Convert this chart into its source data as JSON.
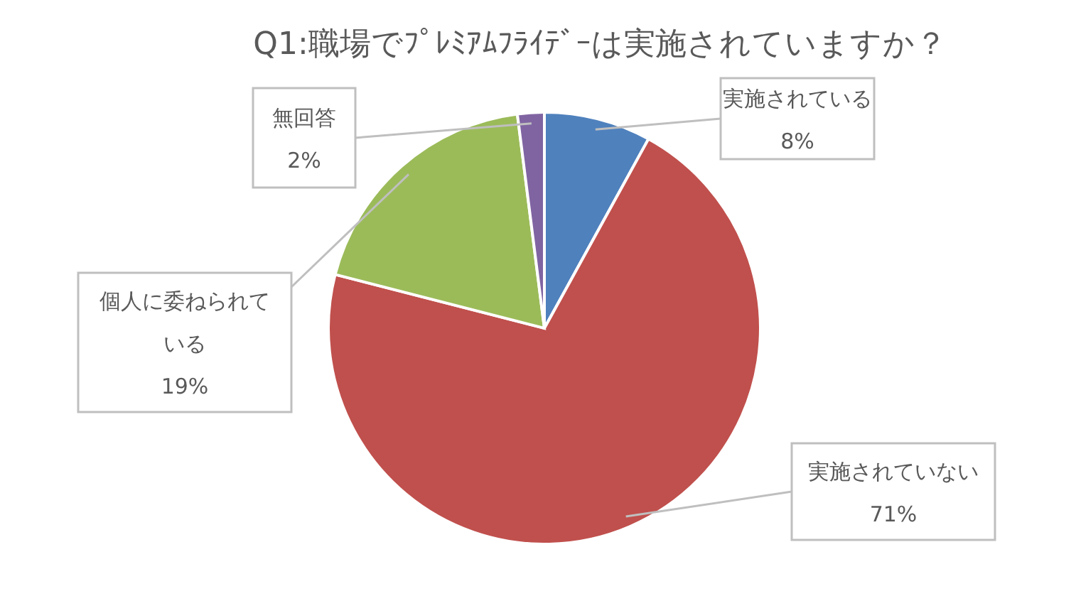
{
  "chart_data": {
    "type": "pie",
    "title": "Q1:職場でﾌﾟﾚﾐｱﾑﾌﾗｲﾃﾞｰは実施されていますか？",
    "categories": [
      "実施されている",
      "実施されていない",
      "個人に委ねられている",
      "無回答"
    ],
    "values": [
      8,
      71,
      19,
      2
    ],
    "value_labels": [
      "8%",
      "71%",
      "19%",
      "2%"
    ],
    "colors": [
      "#4f81bd",
      "#c0504d",
      "#9bbb59",
      "#8064a2"
    ],
    "legend": false
  }
}
